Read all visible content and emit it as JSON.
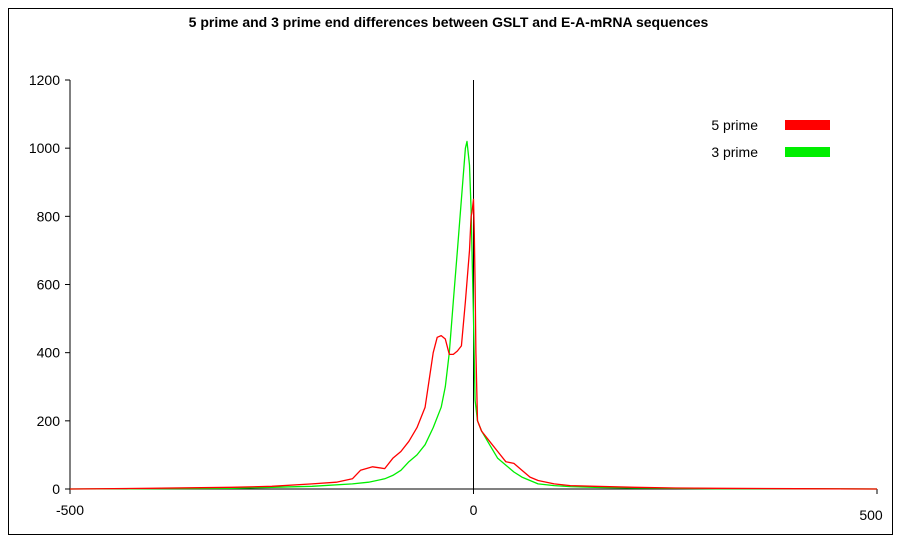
{
  "chart_data": {
    "type": "line",
    "title": "5 prime and 3 prime  end differences between GSLT and E-A-mRNA sequences",
    "xlabel": "",
    "ylabel": "",
    "xlim": [
      -500,
      500
    ],
    "ylim": [
      0,
      1200
    ],
    "x_ticks": [
      -500,
      0,
      500
    ],
    "x_tick_labels": [
      "-500",
      "0",
      "500"
    ],
    "y_ticks": [
      0,
      200,
      400,
      600,
      800,
      1000,
      1200
    ],
    "y_tick_labels": [
      "0",
      "200",
      "400",
      "600",
      "800",
      "1000",
      "1200"
    ],
    "grid": false,
    "legend_position": "top-right",
    "series": [
      {
        "name": "5 prime",
        "color": "#ff0000",
        "x": [
          -500,
          -400,
          -300,
          -250,
          -200,
          -170,
          -150,
          -140,
          -125,
          -110,
          -100,
          -90,
          -80,
          -70,
          -60,
          -50,
          -45,
          -40,
          -35,
          -30,
          -25,
          -20,
          -15,
          -10,
          -5,
          -3,
          -2,
          0,
          1,
          2,
          3,
          5,
          10,
          20,
          30,
          40,
          50,
          60,
          70,
          80,
          100,
          120,
          150,
          200,
          250,
          300,
          400,
          500
        ],
        "y": [
          0,
          2,
          5,
          8,
          15,
          20,
          30,
          55,
          65,
          60,
          90,
          110,
          140,
          180,
          240,
          400,
          445,
          450,
          440,
          395,
          395,
          405,
          420,
          550,
          700,
          800,
          810,
          850,
          750,
          600,
          400,
          200,
          170,
          140,
          110,
          80,
          75,
          55,
          35,
          25,
          15,
          10,
          8,
          5,
          3,
          2,
          1,
          0
        ]
      },
      {
        "name": "3 prime",
        "color": "#00ee00",
        "x": [
          -500,
          -400,
          -300,
          -250,
          -200,
          -150,
          -130,
          -110,
          -100,
          -90,
          -80,
          -70,
          -60,
          -50,
          -40,
          -35,
          -30,
          -25,
          -20,
          -15,
          -10,
          -8,
          -5,
          -3,
          0,
          2,
          5,
          10,
          20,
          30,
          40,
          50,
          60,
          70,
          80,
          100,
          120,
          150,
          200,
          250,
          300,
          400,
          500
        ],
        "y": [
          0,
          1,
          2,
          5,
          8,
          15,
          20,
          30,
          40,
          55,
          80,
          100,
          130,
          180,
          240,
          300,
          400,
          550,
          700,
          850,
          1000,
          1020,
          950,
          820,
          500,
          260,
          200,
          170,
          130,
          90,
          70,
          50,
          35,
          25,
          15,
          10,
          7,
          5,
          3,
          2,
          1,
          1,
          0
        ]
      }
    ]
  }
}
